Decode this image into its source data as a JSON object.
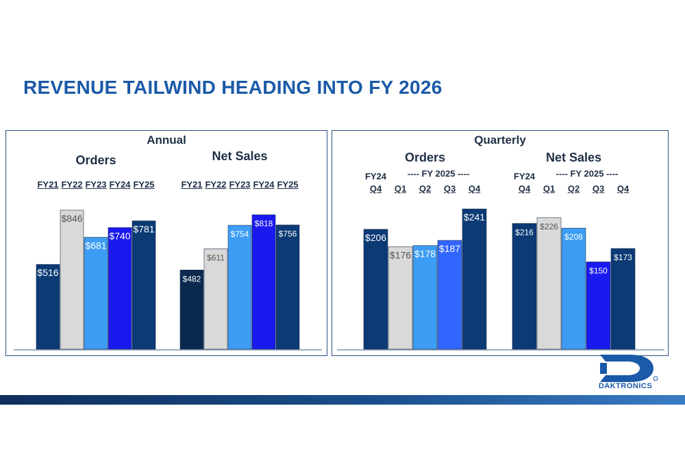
{
  "title": "REVENUE TAILWIND HEADING INTO FY 2026",
  "colors": {
    "title": "#1a5aa8",
    "navy": "#0b3a75",
    "darknavy": "#0c2a4f",
    "lightgray": "#d9d9d9",
    "lightblue": "#3d9df5",
    "blue": "#1919f0",
    "medblue": "#3366ff"
  },
  "logo_text": "DAKTRONICS",
  "chart_data": [
    {
      "type": "bar",
      "title": "Annual",
      "groups": [
        {
          "name": "Orders",
          "categories": [
            "FY21",
            "FY22",
            "FY23",
            "FY24",
            "FY25"
          ],
          "values": [
            516,
            846,
            681,
            740,
            781
          ],
          "value_labels": [
            "$516",
            "$846",
            "$681",
            "$740",
            "$781"
          ]
        },
        {
          "name": "Net Sales",
          "categories": [
            "FY21",
            "FY22",
            "FY23",
            "FY24",
            "FY25"
          ],
          "values": [
            482,
            611,
            754,
            818,
            756
          ],
          "value_labels": [
            "$482",
            "$611",
            "$754",
            "$818",
            "$756"
          ]
        }
      ]
    },
    {
      "type": "bar",
      "title": "Quarterly",
      "groups": [
        {
          "name": "Orders",
          "year_prefix": "FY24",
          "span_label": "---- FY 2025 ----",
          "categories": [
            "Q4",
            "Q1",
            "Q2",
            "Q3",
            "Q4"
          ],
          "values": [
            206,
            176,
            178,
            187,
            241
          ],
          "value_labels": [
            "$206",
            "$176",
            "$178",
            "$187",
            "$241"
          ]
        },
        {
          "name": "Net Sales",
          "year_prefix": "FY24",
          "span_label": "---- FY 2025 ----",
          "categories": [
            "Q4",
            "Q1",
            "Q2",
            "Q3",
            "Q4"
          ],
          "values": [
            216,
            226,
            208,
            150,
            173
          ],
          "value_labels": [
            "$216",
            "$226",
            "$208",
            "$150",
            "$173"
          ]
        }
      ]
    }
  ]
}
